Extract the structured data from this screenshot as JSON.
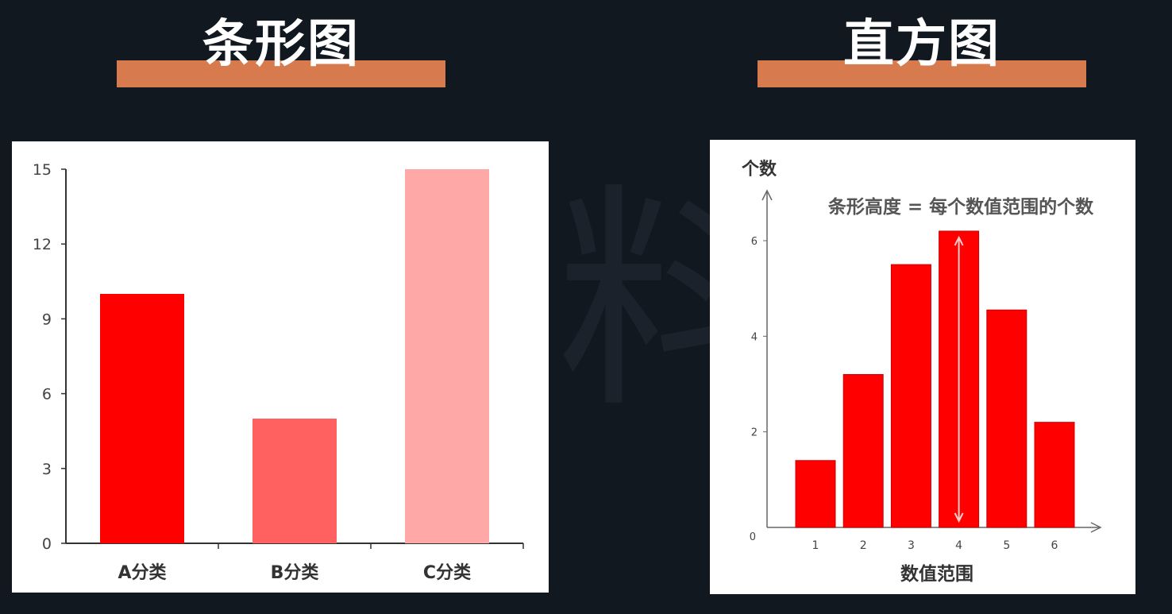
{
  "titles": {
    "left": "条形图",
    "right": "直方图"
  },
  "colors": {
    "background": "#111820",
    "title_bar": "#d77a4e",
    "bar_red": "#ff0000",
    "bar_mid": "#ff6060",
    "bar_light": "#ffa8a8",
    "axis": "#333333",
    "annotation_text": "#555555"
  },
  "chart_data": [
    {
      "type": "bar",
      "categories": [
        "A分类",
        "B分类",
        "C分类"
      ],
      "values": [
        10,
        5,
        15
      ],
      "bar_colors": [
        "#ff0000",
        "#ff6060",
        "#ffa8a8"
      ],
      "ylim": [
        0,
        15
      ],
      "yticks": [
        0,
        3,
        6,
        9,
        12,
        15
      ],
      "title": "",
      "xlabel": "",
      "ylabel": ""
    },
    {
      "type": "bar",
      "categories": [
        "1",
        "2",
        "3",
        "4",
        "5",
        "6"
      ],
      "values": [
        1.4,
        3.2,
        5.5,
        6.2,
        4.55,
        2.2
      ],
      "ylim": [
        0,
        7
      ],
      "yticks": [
        0,
        2,
        4,
        6
      ],
      "xlabel": "数值范围",
      "ylabel": "个数",
      "annotation": "条形高度 = 每个数值范围的个数",
      "highlight_index": 3
    }
  ]
}
